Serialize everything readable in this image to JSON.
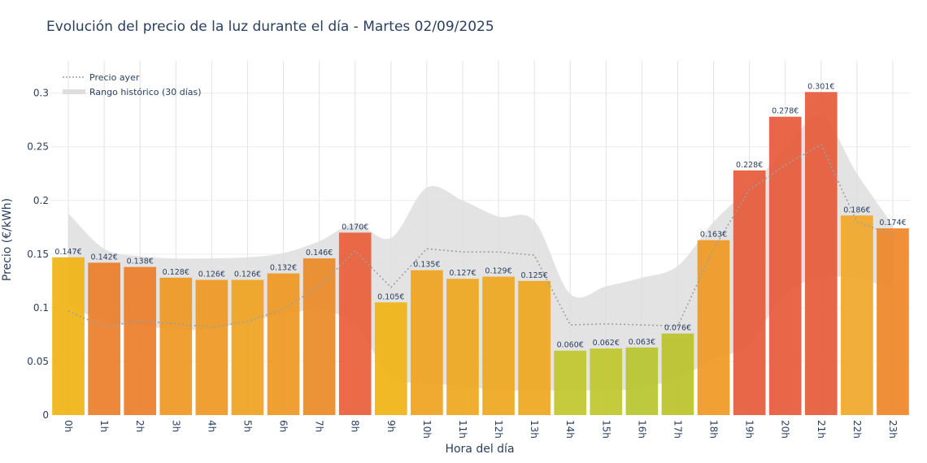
{
  "chart_data": {
    "type": "bar",
    "title": "Evolución del precio de la luz durante el día - Martes 02/09/2025",
    "xlabel": "Hora del día",
    "ylabel": "Precio (€/kWh)",
    "ylim": [
      0,
      0.33
    ],
    "yticks": [
      0,
      0.05,
      0.1,
      0.15,
      0.2,
      0.25,
      0.3
    ],
    "ytick_labels": [
      "0",
      "0.05",
      "0.1",
      "0.15",
      "0.2",
      "0.25",
      "0.3"
    ],
    "grid": true,
    "legend_position": "top-left",
    "categories": [
      "0h",
      "1h",
      "2h",
      "3h",
      "4h",
      "5h",
      "6h",
      "7h",
      "8h",
      "9h",
      "10h",
      "11h",
      "12h",
      "13h",
      "14h",
      "15h",
      "16h",
      "17h",
      "18h",
      "19h",
      "20h",
      "21h",
      "22h",
      "23h"
    ],
    "values": [
      0.147,
      0.142,
      0.138,
      0.128,
      0.126,
      0.126,
      0.132,
      0.146,
      0.17,
      0.105,
      0.135,
      0.127,
      0.129,
      0.125,
      0.06,
      0.062,
      0.063,
      0.076,
      0.163,
      0.228,
      0.278,
      0.301,
      0.186,
      0.174
    ],
    "value_labels": [
      "0.147€",
      "0.142€",
      "0.138€",
      "0.128€",
      "0.126€",
      "0.126€",
      "0.132€",
      "0.146€",
      "0.170€",
      "0.105€",
      "0.135€",
      "0.127€",
      "0.129€",
      "0.125€",
      "0.060€",
      "0.062€",
      "0.063€",
      "0.076€",
      "0.163€",
      "0.228€",
      "0.278€",
      "0.301€",
      "0.186€",
      "0.174€"
    ],
    "bar_colors": [
      "#f1b417",
      "#ec7e2a",
      "#ec7e2a",
      "#ef9824",
      "#ef9824",
      "#f0a421",
      "#ef9824",
      "#ec8b28",
      "#e9603a",
      "#f1b417",
      "#f0a421",
      "#efa821",
      "#efa821",
      "#efa821",
      "#c2c62e",
      "#bfc72e",
      "#b8c62e",
      "#bcc32c",
      "#f09a24",
      "#e55b3a",
      "#e55b3a",
      "#e55b3a",
      "#f1a82b",
      "#ee8829"
    ],
    "series": [
      {
        "name": "Precio ayer",
        "style": "dotted-line",
        "color": "#9aa0a6",
        "values": [
          0.097,
          0.082,
          0.088,
          0.085,
          0.082,
          0.087,
          0.099,
          0.12,
          0.153,
          0.119,
          0.155,
          0.152,
          0.152,
          0.149,
          0.084,
          0.085,
          0.084,
          0.083,
          0.155,
          0.21,
          0.233,
          0.252,
          0.18,
          0.168
        ]
      },
      {
        "name": "Rango histórico (30 días)",
        "style": "band",
        "color": "#dedede",
        "lower": [
          0.103,
          0.087,
          0.083,
          0.08,
          0.08,
          0.088,
          0.093,
          0.098,
          0.084,
          0.036,
          0.03,
          0.027,
          0.023,
          0.023,
          0.023,
          0.023,
          0.025,
          0.035,
          0.051,
          0.067,
          0.113,
          0.128,
          0.127,
          0.118
        ],
        "upper": [
          0.188,
          0.155,
          0.148,
          0.146,
          0.146,
          0.147,
          0.151,
          0.162,
          0.178,
          0.165,
          0.212,
          0.2,
          0.185,
          0.181,
          0.113,
          0.12,
          0.128,
          0.139,
          0.18,
          0.212,
          0.248,
          0.279,
          0.225,
          0.177
        ]
      }
    ]
  }
}
